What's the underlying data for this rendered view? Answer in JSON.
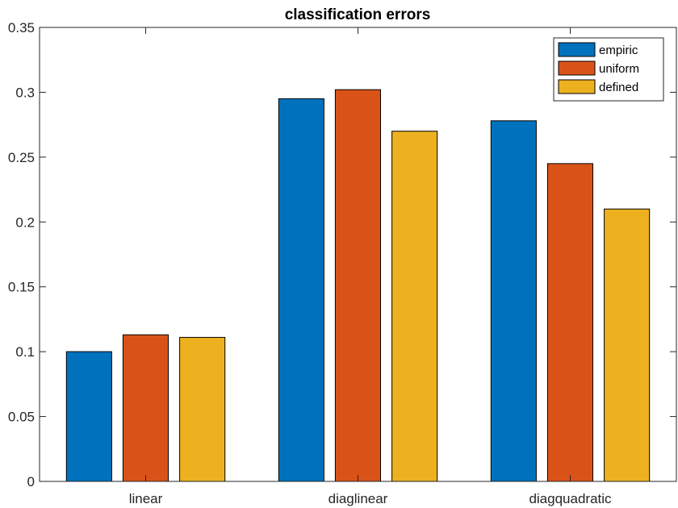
{
  "chart_data": {
    "type": "bar",
    "title": "classification errors",
    "xlabel": "",
    "ylabel": "",
    "categories": [
      "linear",
      "diaglinear",
      "diagquadratic"
    ],
    "series": [
      {
        "name": "empiric",
        "values": [
          0.1,
          0.295,
          0.278
        ],
        "color": "#0072BD"
      },
      {
        "name": "uniform",
        "values": [
          0.113,
          0.302,
          0.245
        ],
        "color": "#D95319"
      },
      {
        "name": "defined",
        "values": [
          0.111,
          0.27,
          0.21
        ],
        "color": "#EDB120"
      }
    ],
    "ylim": [
      0,
      0.35
    ],
    "yticks": [
      0,
      0.05,
      0.1,
      0.15,
      0.2,
      0.25,
      0.3,
      0.35
    ],
    "ytick_labels": [
      "0",
      "0.05",
      "0.1",
      "0.15",
      "0.2",
      "0.25",
      "0.3",
      "0.35"
    ],
    "grid": false,
    "legend_position": "top-right"
  }
}
